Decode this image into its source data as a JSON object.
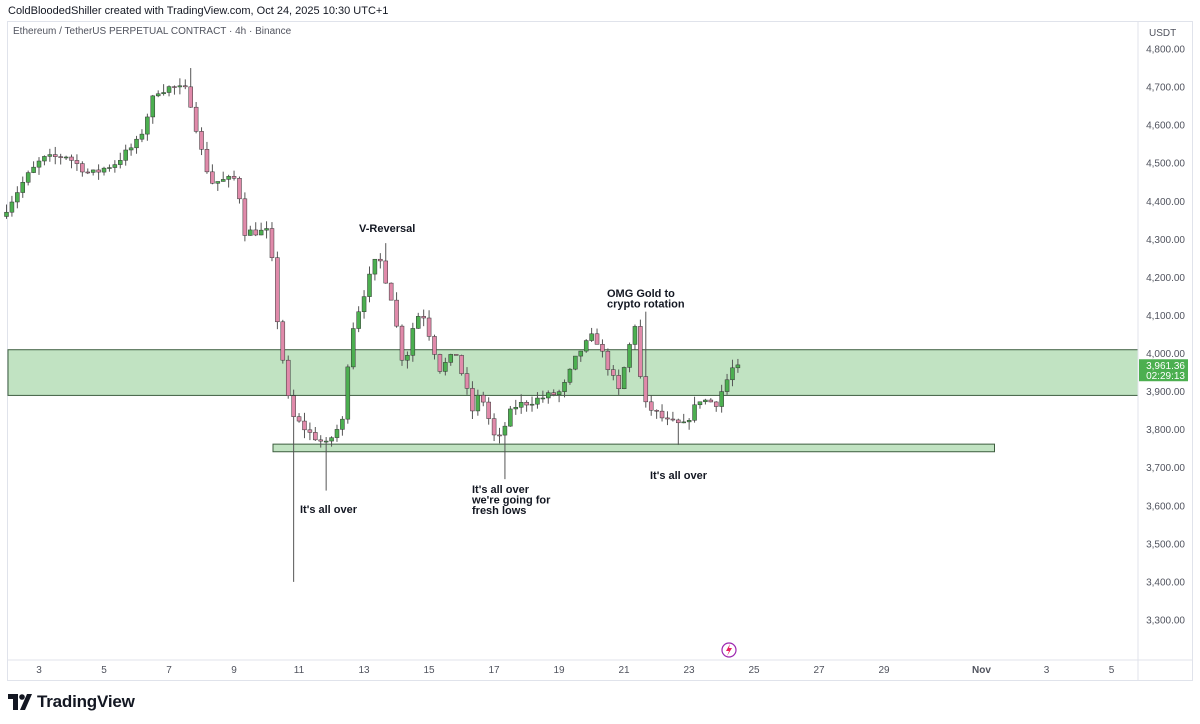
{
  "header": {
    "created_by": "ColdBloodedShiller created with TradingView.com, Oct 24, 2025 10:30 UTC+1",
    "symbol_line": "Ethereum / TetherUS PERPETUAL CONTRACT · 4h · Binance"
  },
  "footer": {
    "brand": "TradingView"
  },
  "chart_data": {
    "type": "candlestick",
    "y_unit": "USDT",
    "ylim": [
      3200,
      4870
    ],
    "y_ticks": [
      "4,800.00",
      "4,700.00",
      "4,600.00",
      "4,500.00",
      "4,400.00",
      "4,300.00",
      "4,200.00",
      "4,100.00",
      "4,000.00",
      "3,900.00",
      "3,800.00",
      "3,700.00",
      "3,600.00",
      "3,500.00",
      "3,400.00",
      "3,300.00"
    ],
    "x_ticks": [
      "3",
      "5",
      "7",
      "9",
      "11",
      "13",
      "15",
      "17",
      "19",
      "21",
      "23",
      "25",
      "27",
      "29",
      "Nov",
      "3",
      "5"
    ],
    "last_price": "3,961.36",
    "countdown": "02:29:13",
    "colors": {
      "up": "#4caf50",
      "down": "#e08aaa",
      "zone": "#4caf50",
      "price_badge": "#4caf50"
    },
    "zones": [
      {
        "name": "resistance-zone",
        "from_day": 2,
        "to_day": 38,
        "low": 3890,
        "high": 4010
      },
      {
        "name": "support-zone",
        "from_day": 10.2,
        "to_day": 32.4,
        "low": 3742,
        "high": 3762
      }
    ],
    "annotations": [
      {
        "lines": [
          "V-Reversal"
        ]
      },
      {
        "lines": [
          "It's all over"
        ]
      },
      {
        "lines": [
          "It's all over",
          "we're going for",
          "fresh lows"
        ]
      },
      {
        "lines": [
          "OMG Gold to",
          "crypto rotation"
        ]
      },
      {
        "lines": [
          "It's all over"
        ]
      }
    ],
    "anchors": [
      [
        2.0,
        4360
      ],
      [
        2.75,
        4460
      ],
      [
        3.25,
        4510
      ],
      [
        4.0,
        4520
      ],
      [
        4.75,
        4470
      ],
      [
        5.5,
        4500
      ],
      [
        6.25,
        4560
      ],
      [
        6.75,
        4690
      ],
      [
        7.25,
        4700
      ],
      [
        7.75,
        4690
      ],
      [
        8.25,
        4500
      ],
      [
        8.5,
        4450
      ],
      [
        9.25,
        4460
      ],
      [
        9.5,
        4320
      ],
      [
        10.25,
        4320
      ],
      [
        10.5,
        4090
      ],
      [
        10.9,
        3840
      ],
      [
        11.5,
        3790
      ],
      [
        12.0,
        3760
      ],
      [
        12.5,
        3820
      ],
      [
        12.75,
        4050
      ],
      [
        13.25,
        4180
      ],
      [
        13.6,
        4260
      ],
      [
        14.0,
        4150
      ],
      [
        14.4,
        3960
      ],
      [
        14.75,
        4100
      ],
      [
        15.0,
        4100
      ],
      [
        15.5,
        3960
      ],
      [
        16.0,
        4000
      ],
      [
        16.5,
        3850
      ],
      [
        16.75,
        3900
      ],
      [
        17.25,
        3760
      ],
      [
        17.75,
        3860
      ],
      [
        18.5,
        3880
      ],
      [
        19.25,
        3900
      ],
      [
        19.75,
        4000
      ],
      [
        20.25,
        4050
      ],
      [
        20.75,
        3950
      ],
      [
        21.0,
        3900
      ],
      [
        21.5,
        4080
      ],
      [
        21.75,
        3870
      ],
      [
        22.5,
        3820
      ],
      [
        23.0,
        3810
      ],
      [
        23.5,
        3880
      ],
      [
        24.0,
        3870
      ],
      [
        24.5,
        3960
      ]
    ],
    "candle_days": [
      2.0,
      24.55
    ],
    "candle_step_days": 0.1667
  }
}
